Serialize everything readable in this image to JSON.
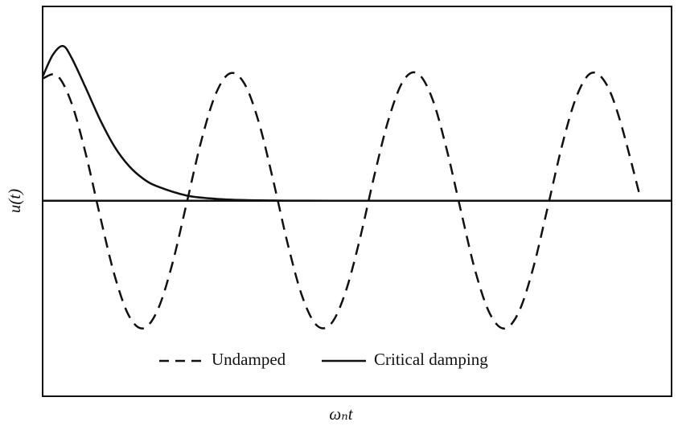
{
  "chart_data": {
    "type": "line",
    "xlabel": "ωₙt",
    "ylabel": "u(t)",
    "xlim": [
      0,
      21.8
    ],
    "ylim": [
      -1.53,
      1.52
    ],
    "legend": "bottom",
    "series": [
      {
        "name": "Undamped",
        "color": "#111111",
        "style": "dashed",
        "x": [
          0,
          0.5,
          1,
          1.5,
          2,
          2.5,
          3,
          3.5,
          4,
          4.5,
          5,
          5.5,
          6,
          6.5,
          7,
          7.5,
          8,
          8.5,
          9,
          9.5,
          10,
          10.5,
          11,
          11.5,
          12,
          12.5,
          13,
          13.5,
          14,
          14.5,
          15,
          15.5,
          16,
          16.5,
          17,
          17.5,
          18,
          18.5,
          19,
          19.5,
          20,
          20.7
        ],
        "values": [
          0.955,
          0.98,
          0.765,
          0.362,
          -0.129,
          -0.589,
          -0.904,
          -0.998,
          -0.848,
          -0.49,
          -0.012,
          0.469,
          0.835,
          0.997,
          0.914,
          0.608,
          0.151,
          -0.342,
          -0.75,
          -0.975,
          -0.962,
          -0.714,
          -0.296,
          0.2,
          0.643,
          0.938,
          0.996,
          0.802,
          0.407,
          -0.081,
          -0.553,
          -0.883,
          -1.0,
          -0.873,
          -0.53,
          -0.058,
          0.428,
          0.812,
          0.997,
          0.927,
          0.638,
          0.04
        ]
      },
      {
        "name": "Critical damping",
        "color": "#111111",
        "style": "solid",
        "x": [
          0,
          0.35,
          0.7,
          1,
          1.5,
          2,
          2.5,
          3,
          3.5,
          4,
          5,
          6,
          7,
          8,
          10,
          21.8
        ],
        "values": [
          0.97,
          1.14,
          1.21,
          1.12,
          0.88,
          0.63,
          0.42,
          0.27,
          0.17,
          0.11,
          0.04,
          0.015,
          0.005,
          0.002,
          0,
          0
        ]
      }
    ]
  }
}
